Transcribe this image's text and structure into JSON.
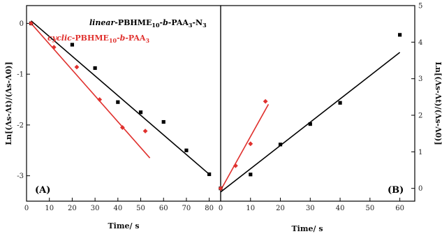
{
  "chart_data": [
    {
      "type": "scatter",
      "panel_label": "(A)",
      "xlabel": "Time/ s",
      "ylabel": "Ln[(Λs-Λt)/(Λs-Λ0)]",
      "xlim": [
        0,
        85
      ],
      "ylim": [
        -3.5,
        0.35
      ],
      "x_ticks": [
        0,
        10,
        20,
        30,
        40,
        50,
        60,
        70,
        80
      ],
      "y_ticks": [
        0,
        -1,
        -2,
        -3
      ],
      "legend": {
        "items": [
          {
            "parts": [
              "linear",
              "-PBHME",
              "10",
              "-",
              "b",
              "-PAA",
              "3",
              "-N",
              "3"
            ],
            "color": "#000000"
          },
          {
            "parts": [
              "cyclic",
              "-PBHME",
              "10",
              "-",
              "b",
              "-PAA",
              "3",
              "",
              ""
            ],
            "color": "#e0312e"
          }
        ]
      },
      "series": [
        {
          "name": "linear-PBHME10-b-PAA3-N3",
          "color": "#000000",
          "marker": "square",
          "points": [
            [
              2,
              0.0
            ],
            [
              20,
              -0.42
            ],
            [
              30,
              -0.88
            ],
            [
              40,
              -1.55
            ],
            [
              50,
              -1.75
            ],
            [
              60,
              -1.94
            ],
            [
              70,
              -2.5
            ],
            [
              80,
              -2.97
            ]
          ],
          "fit": [
            [
              2,
              0.05
            ],
            [
              80,
              -2.97
            ]
          ]
        },
        {
          "name": "cyclic-PBHME10-b-PAA3",
          "color": "#e0312e",
          "marker": "diamond",
          "points": [
            [
              2,
              0.0
            ],
            [
              12,
              -0.47
            ],
            [
              22,
              -0.86
            ],
            [
              32,
              -1.5
            ],
            [
              42,
              -2.05
            ],
            [
              52,
              -2.12
            ]
          ],
          "fit": [
            [
              2,
              0.0
            ],
            [
              54,
              -2.65
            ]
          ]
        }
      ]
    },
    {
      "type": "scatter",
      "panel_label": "(B)",
      "xlabel": "Time/ s",
      "ylabel": "Ln[(Λs-Λt)/(Λs-Λ0)]",
      "xlim": [
        0,
        65
      ],
      "ylim": [
        -0.35,
        5
      ],
      "x_ticks": [
        0,
        10,
        20,
        30,
        40,
        50,
        60
      ],
      "y_ticks": [
        0,
        1,
        2,
        3,
        4,
        5
      ],
      "series": [
        {
          "name": "linear-PBHME10-b-PAA3-N3",
          "color": "#000000",
          "marker": "square",
          "points": [
            [
              0,
              0.0
            ],
            [
              10,
              0.38
            ],
            [
              20,
              1.2
            ],
            [
              30,
              1.76
            ],
            [
              40,
              2.34
            ],
            [
              60,
              4.2
            ]
          ],
          "fit": [
            [
              0,
              -0.1
            ],
            [
              60,
              3.72
            ]
          ]
        },
        {
          "name": "cyclic-PBHME10-b-PAA3",
          "color": "#e0312e",
          "marker": "diamond",
          "points": [
            [
              0,
              0.0
            ],
            [
              5,
              0.62
            ],
            [
              10,
              1.22
            ],
            [
              15,
              2.38
            ]
          ],
          "fit": [
            [
              0,
              -0.05
            ],
            [
              16,
              2.3
            ]
          ]
        }
      ]
    }
  ]
}
